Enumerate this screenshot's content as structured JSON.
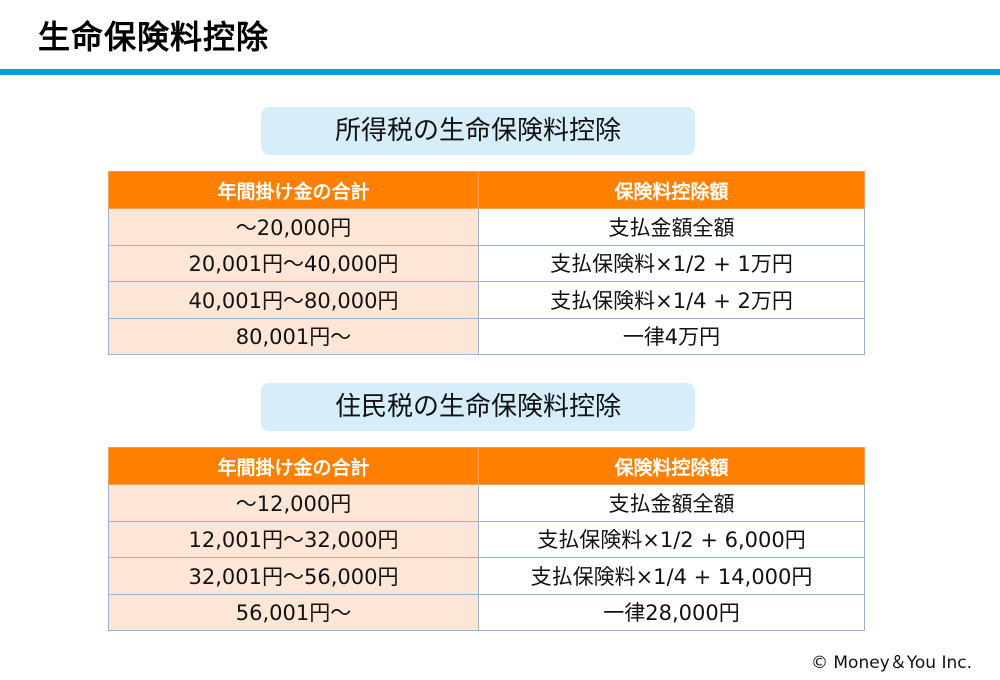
{
  "slide_title": "生命保険料控除",
  "sections": [
    {
      "heading": "所得税の生命保険料控除",
      "headers": [
        "年間掛け金の合計",
        "保険料控除額"
      ],
      "rows": [
        [
          "～20,000円",
          "支払金額全額"
        ],
        [
          "20,001円～40,000円",
          "支払保険料×1/2 + 1万円"
        ],
        [
          "40,001円～80,000円",
          "支払保険料×1/4 + 2万円"
        ],
        [
          "80,001円～",
          "一律4万円"
        ]
      ]
    },
    {
      "heading": "住民税の生命保険料控除",
      "headers": [
        "年間掛け金の合計",
        "保険料控除額"
      ],
      "rows": [
        [
          "～12,000円",
          "支払金額全額"
        ],
        [
          "12,001円～32,000円",
          "支払保険料×1/2 + 6,000円"
        ],
        [
          "32,001円～56,000円",
          "支払保険料×1/4 + 14,000円"
        ],
        [
          "56,001円～",
          "一律28,000円"
        ]
      ]
    }
  ],
  "copyright": "© Money＆You Inc.",
  "colors": {
    "accent_rule": "#00a0e0",
    "header_bg": "#ff7f00",
    "range_cell_bg": "#fde6d6",
    "heading_bg": "#d6eefa"
  }
}
